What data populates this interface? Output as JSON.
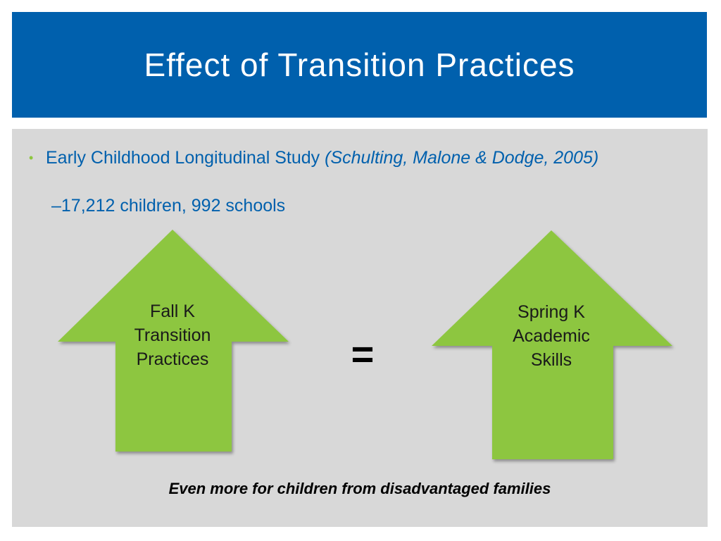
{
  "title": "Effect of Transition Practices",
  "bullets": {
    "study": "Early Childhood Longitudinal Study ",
    "citation": "(Schulting, Malone & Dodge, 2005)",
    "dash": "–",
    "sub": "17,212 children, 992 schools"
  },
  "arrows": {
    "left": {
      "line1": "Fall K",
      "line2": "Transition",
      "line3": "Practices"
    },
    "right": {
      "line1": "Spring K",
      "line2": "Academic",
      "line3": "Skills"
    },
    "equals": "="
  },
  "footnote": "Even more for children from disadvantaged families",
  "colors": {
    "title_bar": "#0060ad",
    "content_bg": "#d8d8d8",
    "arrow_fill": "#8dc63f",
    "bullet_accent": "#8dc63f"
  }
}
